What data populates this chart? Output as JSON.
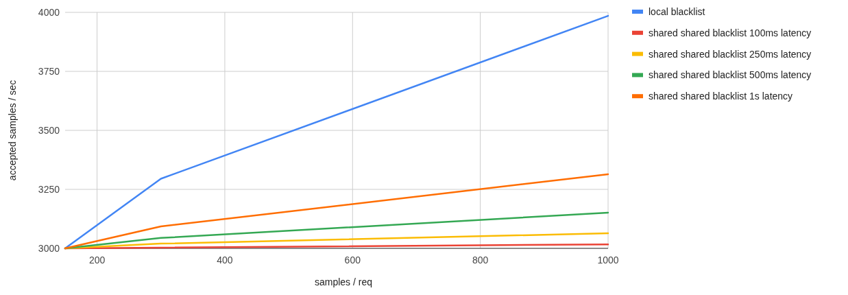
{
  "chart_data": {
    "type": "line",
    "xlabel": "samples / req",
    "ylabel": "accepted samples / sec",
    "x": [
      150,
      300,
      1000
    ],
    "series": [
      {
        "name": "local blacklist",
        "color": "#4285f4",
        "values": [
          3000,
          3295,
          3985
        ]
      },
      {
        "name": "shared shared blacklist 100ms latency",
        "color": "#ea4335",
        "values": [
          3000,
          3003,
          3017
        ]
      },
      {
        "name": "shared shared blacklist 250ms latency",
        "color": "#fbbc04",
        "values": [
          3000,
          3020,
          3064
        ]
      },
      {
        "name": "shared shared blacklist 500ms latency",
        "color": "#34a853",
        "values": [
          3000,
          3044,
          3151
        ]
      },
      {
        "name": "shared shared blacklist 1s latency",
        "color": "#ff6d01",
        "values": [
          3000,
          3093,
          3314
        ]
      }
    ],
    "xlim": [
      150,
      1000
    ],
    "xticks": [
      200,
      400,
      600,
      800,
      1000
    ],
    "ylim": [
      3000,
      4000
    ],
    "yticks": [
      3000,
      3250,
      3500,
      3750,
      4000
    ],
    "grid": true,
    "legend": "right",
    "marker": "none",
    "line_style": "solid"
  }
}
